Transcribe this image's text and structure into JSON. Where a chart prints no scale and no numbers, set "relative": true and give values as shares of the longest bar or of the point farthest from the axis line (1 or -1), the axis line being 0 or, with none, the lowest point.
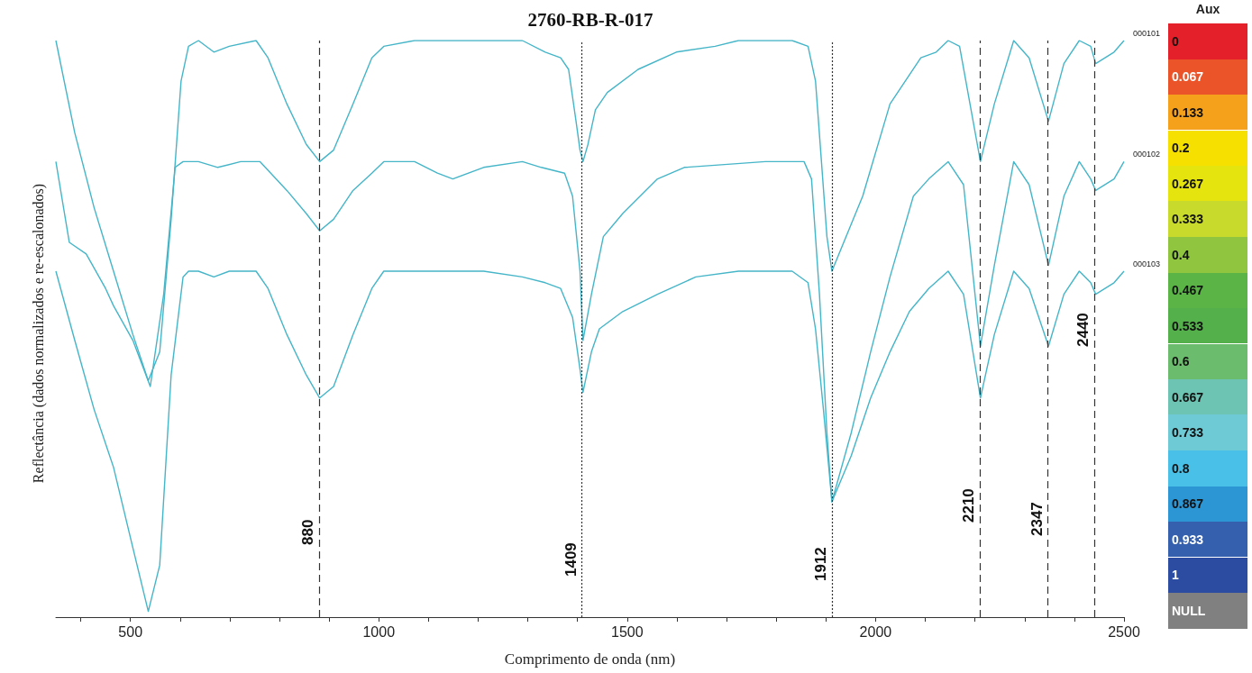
{
  "chart_data": {
    "type": "line",
    "title": "2760-RB-R-017",
    "xlabel": "Comprimento de onda (nm)",
    "ylabel": "Reflectância (dados normalizados e re-escalonados)",
    "relative": true,
    "grid": false,
    "xlim": [
      350,
      2500
    ],
    "xticks": [
      {
        "value": 400,
        "label": null
      },
      500,
      {
        "value": 600,
        "label": null
      },
      {
        "value": 700,
        "label": null
      },
      {
        "value": 800,
        "label": null
      },
      {
        "value": 900,
        "label": null
      },
      1000,
      {
        "value": 1100,
        "label": null
      },
      {
        "value": 1200,
        "label": null
      },
      {
        "value": 1300,
        "label": null
      },
      {
        "value": 1400,
        "label": null
      },
      1500,
      {
        "value": 1600,
        "label": null
      },
      {
        "value": 1700,
        "label": null
      },
      {
        "value": 1800,
        "label": null
      },
      {
        "value": 1900,
        "label": null
      },
      2000,
      {
        "value": 2100,
        "label": null
      },
      {
        "value": 2200,
        "label": null
      },
      {
        "value": 2300,
        "label": null
      },
      {
        "value": 2400,
        "label": null
      },
      2500
    ],
    "series": [
      {
        "name": "000101",
        "color": "#45b5c8",
        "x": [
          350,
          388,
          427,
          466,
          505,
          536,
          559,
          582,
          602,
          617,
          637,
          668,
          699,
          753,
          777,
          815,
          854,
          881,
          909,
          948,
          986,
          1010,
          1072,
          1133,
          1211,
          1289,
          1335,
          1366,
          1382,
          1397,
          1405,
          1411,
          1421,
          1436,
          1460,
          1522,
          1599,
          1677,
          1724,
          1832,
          1864,
          1879,
          1891,
          1902,
          1912,
          1974,
          2029,
          2091,
          2122,
          2146,
          2169,
          2211,
          2239,
          2278,
          2309,
          2348,
          2379,
          2410,
          2433,
          2443,
          2480,
          2500
        ],
        "values": [
          1.0,
          0.84,
          0.71,
          0.6,
          0.49,
          0.41,
          0.46,
          0.69,
          0.93,
          0.99,
          1.0,
          0.98,
          0.99,
          1.0,
          0.97,
          0.89,
          0.82,
          0.79,
          0.81,
          0.89,
          0.97,
          0.99,
          1.0,
          1.0,
          1.0,
          1.0,
          0.98,
          0.97,
          0.95,
          0.86,
          0.81,
          0.79,
          0.82,
          0.88,
          0.91,
          0.95,
          0.98,
          0.99,
          1.0,
          1.0,
          0.99,
          0.93,
          0.79,
          0.66,
          0.6,
          0.73,
          0.89,
          0.97,
          0.98,
          1.0,
          0.99,
          0.79,
          0.89,
          1.0,
          0.97,
          0.86,
          0.96,
          1.0,
          0.99,
          0.96,
          0.98,
          1.0
        ]
      },
      {
        "name": "000102",
        "color": "#45b5c8",
        "x": [
          350,
          377,
          411,
          450,
          466,
          505,
          540,
          567,
          590,
          606,
          637,
          676,
          722,
          761,
          815,
          854,
          881,
          909,
          948,
          986,
          1010,
          1072,
          1118,
          1149,
          1211,
          1289,
          1327,
          1374,
          1390,
          1405,
          1411,
          1428,
          1452,
          1491,
          1561,
          1615,
          1778,
          1856,
          1871,
          1887,
          1902,
          1912,
          1951,
          1990,
          2029,
          2076,
          2107,
          2146,
          2177,
          2211,
          2239,
          2278,
          2309,
          2348,
          2379,
          2410,
          2433,
          2443,
          2480,
          2500
        ],
        "values": [
          0.79,
          0.65,
          0.63,
          0.57,
          0.54,
          0.48,
          0.4,
          0.56,
          0.78,
          0.79,
          0.79,
          0.78,
          0.79,
          0.79,
          0.74,
          0.7,
          0.67,
          0.69,
          0.74,
          0.77,
          0.79,
          0.79,
          0.77,
          0.76,
          0.78,
          0.79,
          0.78,
          0.77,
          0.73,
          0.6,
          0.48,
          0.56,
          0.66,
          0.7,
          0.76,
          0.78,
          0.79,
          0.79,
          0.76,
          0.56,
          0.32,
          0.2,
          0.32,
          0.46,
          0.59,
          0.73,
          0.76,
          0.79,
          0.75,
          0.47,
          0.61,
          0.79,
          0.75,
          0.61,
          0.73,
          0.79,
          0.76,
          0.74,
          0.76,
          0.79
        ]
      },
      {
        "name": "000103",
        "color": "#45b5c8",
        "x": [
          350,
          388,
          427,
          466,
          505,
          536,
          559,
          582,
          606,
          617,
          637,
          668,
          699,
          753,
          777,
          815,
          854,
          881,
          909,
          948,
          986,
          1010,
          1072,
          1211,
          1289,
          1335,
          1366,
          1390,
          1405,
          1411,
          1428,
          1444,
          1491,
          1561,
          1638,
          1724,
          1832,
          1864,
          1879,
          1895,
          1910,
          1912,
          1951,
          1990,
          2029,
          2068,
          2107,
          2146,
          2177,
          2211,
          2239,
          2278,
          2309,
          2348,
          2379,
          2410,
          2433,
          2443,
          2480,
          2500
        ],
        "values": [
          0.6,
          0.48,
          0.36,
          0.26,
          0.12,
          0.01,
          0.09,
          0.42,
          0.59,
          0.6,
          0.6,
          0.59,
          0.6,
          0.6,
          0.57,
          0.49,
          0.42,
          0.38,
          0.4,
          0.49,
          0.57,
          0.6,
          0.6,
          0.6,
          0.59,
          0.58,
          0.57,
          0.52,
          0.43,
          0.39,
          0.46,
          0.5,
          0.53,
          0.56,
          0.59,
          0.6,
          0.6,
          0.58,
          0.5,
          0.36,
          0.22,
          0.2,
          0.28,
          0.38,
          0.46,
          0.53,
          0.57,
          0.6,
          0.56,
          0.38,
          0.49,
          0.6,
          0.57,
          0.47,
          0.56,
          0.6,
          0.58,
          0.56,
          0.58,
          0.6
        ]
      }
    ],
    "ref_lines": [
      {
        "axis": "x",
        "value": 880,
        "label": "880",
        "line_style": "dashed",
        "color": "#333333"
      },
      {
        "axis": "x",
        "value": 1409,
        "label": "1409",
        "line_style": "dotted",
        "color": "#333333"
      },
      {
        "axis": "x",
        "value": 1912,
        "label": "1912",
        "line_style": "dotted",
        "color": "#333333"
      },
      {
        "axis": "x",
        "value": 2210,
        "label": "2210",
        "line_style": "dashed",
        "color": "#333333"
      },
      {
        "axis": "x",
        "value": 2347,
        "label": "2347",
        "line_style": "dashed",
        "color": "#333333"
      },
      {
        "axis": "x",
        "value": 2440,
        "label": "2440",
        "line_style": "dashed",
        "color": "#333333"
      }
    ],
    "clabel": "Aux",
    "clim": [
      0,
      1
    ],
    "cticks": [
      0,
      0.067,
      0.133,
      0.2,
      0.267,
      0.333,
      0.4,
      0.467,
      0.533,
      0.6,
      0.667,
      0.733,
      0.8,
      0.867,
      0.933,
      1
    ],
    "annotations": [
      "NULL"
    ]
  }
}
